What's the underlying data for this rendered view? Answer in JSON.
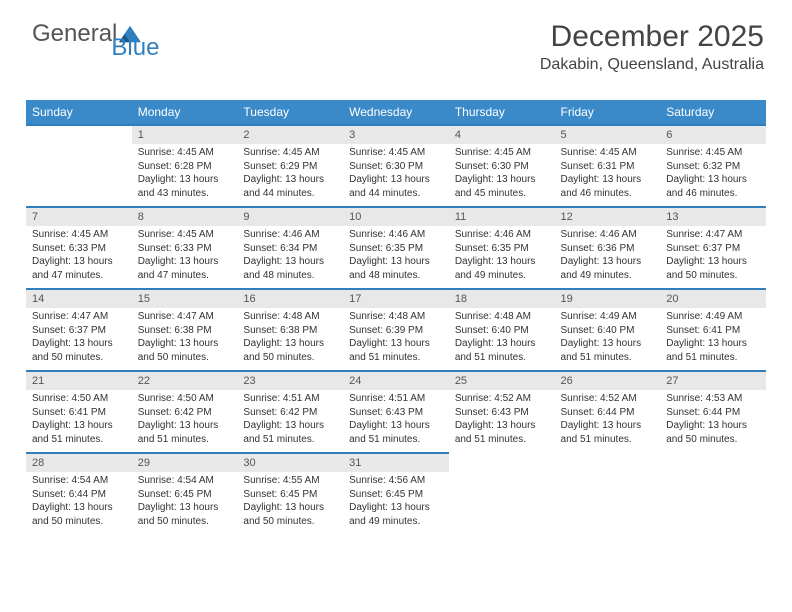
{
  "logo": {
    "word1": "General",
    "word2": "Blue"
  },
  "header": {
    "month": "December 2025",
    "location": "Dakabin, Queensland, Australia"
  },
  "columns": [
    "Sunday",
    "Monday",
    "Tuesday",
    "Wednesday",
    "Thursday",
    "Friday",
    "Saturday"
  ],
  "colors": {
    "header_bg": "#3a8ac9",
    "header_text": "#ffffff",
    "date_bg": "#e8e8e8",
    "date_border": "#2f7fbf",
    "body_text": "#333333",
    "background": "#ffffff"
  },
  "typography": {
    "month_fontsize": 30,
    "location_fontsize": 16,
    "header_fontsize": 12,
    "date_fontsize": 11,
    "cell_fontsize": 10
  },
  "layout": {
    "first_day_column_index": 1,
    "num_columns": 7,
    "num_rows": 5
  },
  "days": [
    {
      "n": "1",
      "sr": "4:45 AM",
      "ss": "6:28 PM",
      "dl": "13 hours and 43 minutes."
    },
    {
      "n": "2",
      "sr": "4:45 AM",
      "ss": "6:29 PM",
      "dl": "13 hours and 44 minutes."
    },
    {
      "n": "3",
      "sr": "4:45 AM",
      "ss": "6:30 PM",
      "dl": "13 hours and 44 minutes."
    },
    {
      "n": "4",
      "sr": "4:45 AM",
      "ss": "6:30 PM",
      "dl": "13 hours and 45 minutes."
    },
    {
      "n": "5",
      "sr": "4:45 AM",
      "ss": "6:31 PM",
      "dl": "13 hours and 46 minutes."
    },
    {
      "n": "6",
      "sr": "4:45 AM",
      "ss": "6:32 PM",
      "dl": "13 hours and 46 minutes."
    },
    {
      "n": "7",
      "sr": "4:45 AM",
      "ss": "6:33 PM",
      "dl": "13 hours and 47 minutes."
    },
    {
      "n": "8",
      "sr": "4:45 AM",
      "ss": "6:33 PM",
      "dl": "13 hours and 47 minutes."
    },
    {
      "n": "9",
      "sr": "4:46 AM",
      "ss": "6:34 PM",
      "dl": "13 hours and 48 minutes."
    },
    {
      "n": "10",
      "sr": "4:46 AM",
      "ss": "6:35 PM",
      "dl": "13 hours and 48 minutes."
    },
    {
      "n": "11",
      "sr": "4:46 AM",
      "ss": "6:35 PM",
      "dl": "13 hours and 49 minutes."
    },
    {
      "n": "12",
      "sr": "4:46 AM",
      "ss": "6:36 PM",
      "dl": "13 hours and 49 minutes."
    },
    {
      "n": "13",
      "sr": "4:47 AM",
      "ss": "6:37 PM",
      "dl": "13 hours and 50 minutes."
    },
    {
      "n": "14",
      "sr": "4:47 AM",
      "ss": "6:37 PM",
      "dl": "13 hours and 50 minutes."
    },
    {
      "n": "15",
      "sr": "4:47 AM",
      "ss": "6:38 PM",
      "dl": "13 hours and 50 minutes."
    },
    {
      "n": "16",
      "sr": "4:48 AM",
      "ss": "6:38 PM",
      "dl": "13 hours and 50 minutes."
    },
    {
      "n": "17",
      "sr": "4:48 AM",
      "ss": "6:39 PM",
      "dl": "13 hours and 51 minutes."
    },
    {
      "n": "18",
      "sr": "4:48 AM",
      "ss": "6:40 PM",
      "dl": "13 hours and 51 minutes."
    },
    {
      "n": "19",
      "sr": "4:49 AM",
      "ss": "6:40 PM",
      "dl": "13 hours and 51 minutes."
    },
    {
      "n": "20",
      "sr": "4:49 AM",
      "ss": "6:41 PM",
      "dl": "13 hours and 51 minutes."
    },
    {
      "n": "21",
      "sr": "4:50 AM",
      "ss": "6:41 PM",
      "dl": "13 hours and 51 minutes."
    },
    {
      "n": "22",
      "sr": "4:50 AM",
      "ss": "6:42 PM",
      "dl": "13 hours and 51 minutes."
    },
    {
      "n": "23",
      "sr": "4:51 AM",
      "ss": "6:42 PM",
      "dl": "13 hours and 51 minutes."
    },
    {
      "n": "24",
      "sr": "4:51 AM",
      "ss": "6:43 PM",
      "dl": "13 hours and 51 minutes."
    },
    {
      "n": "25",
      "sr": "4:52 AM",
      "ss": "6:43 PM",
      "dl": "13 hours and 51 minutes."
    },
    {
      "n": "26",
      "sr": "4:52 AM",
      "ss": "6:44 PM",
      "dl": "13 hours and 51 minutes."
    },
    {
      "n": "27",
      "sr": "4:53 AM",
      "ss": "6:44 PM",
      "dl": "13 hours and 50 minutes."
    },
    {
      "n": "28",
      "sr": "4:54 AM",
      "ss": "6:44 PM",
      "dl": "13 hours and 50 minutes."
    },
    {
      "n": "29",
      "sr": "4:54 AM",
      "ss": "6:45 PM",
      "dl": "13 hours and 50 minutes."
    },
    {
      "n": "30",
      "sr": "4:55 AM",
      "ss": "6:45 PM",
      "dl": "13 hours and 50 minutes."
    },
    {
      "n": "31",
      "sr": "4:56 AM",
      "ss": "6:45 PM",
      "dl": "13 hours and 49 minutes."
    }
  ],
  "labels": {
    "sunrise": "Sunrise: ",
    "sunset": "Sunset: ",
    "daylight": "Daylight: "
  }
}
